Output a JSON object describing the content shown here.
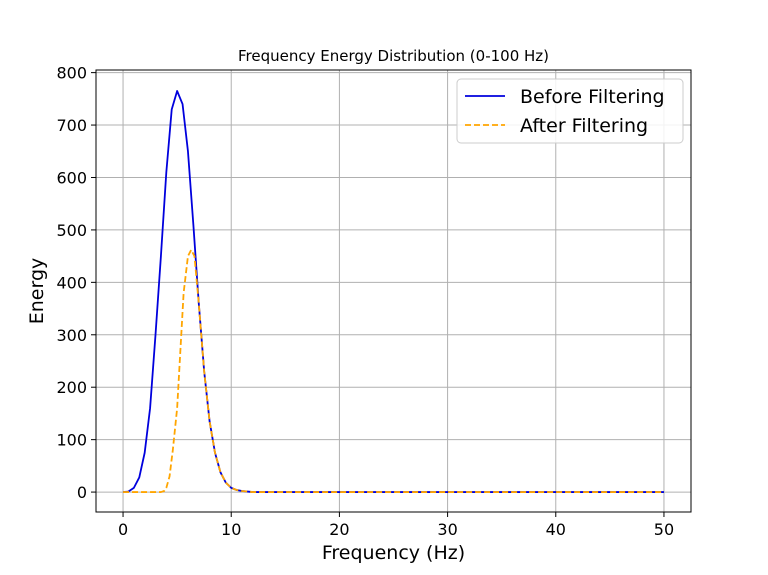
{
  "chart_data": {
    "type": "line",
    "title": "Frequency Energy Distribution (0-100 Hz)",
    "xlabel": "Frequency (Hz)",
    "ylabel": "Energy",
    "xlim": [
      -2.5,
      52.5
    ],
    "ylim": [
      -38,
      805
    ],
    "xticks": [
      0,
      10,
      20,
      30,
      40,
      50
    ],
    "yticks": [
      0,
      100,
      200,
      300,
      400,
      500,
      600,
      700,
      800
    ],
    "grid": true,
    "legend_position": "top-right",
    "series": [
      {
        "name": "Before Filtering",
        "color": "#0000dd",
        "style": "solid",
        "x": [
          0,
          0.5,
          1,
          1.5,
          2,
          2.5,
          3,
          3.5,
          4,
          4.5,
          5,
          5.5,
          6,
          6.5,
          7,
          7.5,
          8,
          8.5,
          9,
          9.5,
          10,
          10.5,
          11,
          11.5,
          12,
          13,
          14,
          15,
          20,
          30,
          40,
          50
        ],
        "y": [
          0,
          1,
          8,
          28,
          75,
          160,
          300,
          450,
          610,
          730,
          765,
          740,
          650,
          510,
          360,
          230,
          135,
          75,
          38,
          18,
          8,
          4,
          2,
          1,
          0,
          0,
          0,
          0,
          0,
          0,
          0,
          0
        ]
      },
      {
        "name": "After Filtering",
        "color": "#ffa500",
        "style": "dashed",
        "x": [
          0,
          0.5,
          1,
          1.5,
          2,
          2.5,
          3,
          3.5,
          3.8,
          4,
          4.3,
          4.6,
          5,
          5.3,
          5.6,
          6,
          6.3,
          6.6,
          7,
          7.5,
          8,
          8.5,
          9,
          9.5,
          10,
          10.5,
          11,
          11.5,
          12,
          13,
          14,
          15,
          20,
          30,
          40,
          50
        ],
        "y": [
          0,
          0,
          0,
          0,
          0,
          0,
          0,
          0,
          2,
          8,
          30,
          80,
          160,
          270,
          380,
          450,
          462,
          450,
          360,
          230,
          135,
          75,
          38,
          18,
          8,
          4,
          2,
          1,
          0,
          0,
          0,
          0,
          0,
          0,
          0,
          0
        ]
      }
    ]
  }
}
